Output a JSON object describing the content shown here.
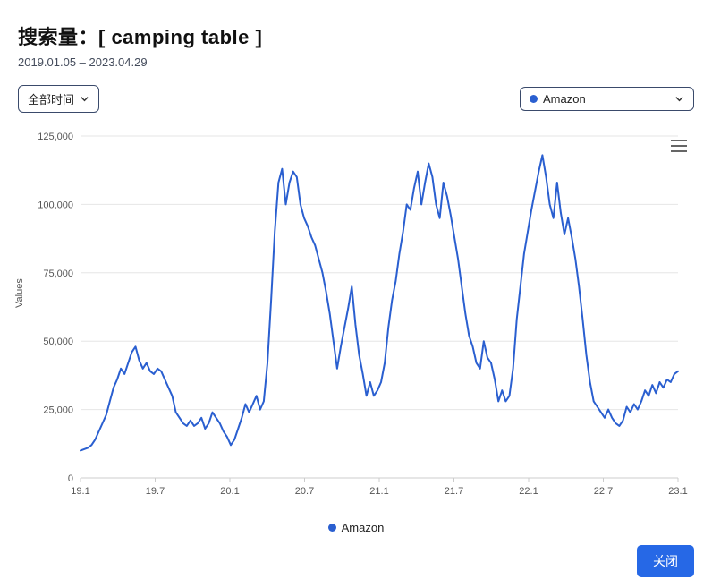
{
  "header": {
    "title": "搜索量：[ camping table ]",
    "date_range": "2019.01.05 – 2023.04.29"
  },
  "controls": {
    "time_filter_label": "全部时间",
    "series_selector_label": "Amazon"
  },
  "chart": {
    "type": "line",
    "ylabel": "Values",
    "line_color": "#2a5fd0",
    "line_width": 2,
    "background_color": "#ffffff",
    "grid_color": "#e6e6e6",
    "axis_color": "#cccccc",
    "tick_fontsize": 11,
    "label_fontsize": 11,
    "ylim": [
      0,
      125000
    ],
    "ytick_step": 25000,
    "yticks": [
      {
        "v": 0,
        "label": "0"
      },
      {
        "v": 25000,
        "label": "25,000"
      },
      {
        "v": 50000,
        "label": "50,000"
      },
      {
        "v": 75000,
        "label": "75,000"
      },
      {
        "v": 100000,
        "label": "100,000"
      },
      {
        "v": 125000,
        "label": "125,000"
      }
    ],
    "x_categories": [
      "19.1",
      "19.7",
      "20.1",
      "20.7",
      "21.1",
      "21.7",
      "22.1",
      "22.7",
      "23.1"
    ],
    "series": [
      {
        "name": "Amazon",
        "color": "#2a5fd0",
        "values": [
          10000,
          10500,
          11000,
          12000,
          14000,
          17000,
          20000,
          23000,
          28000,
          33000,
          36000,
          40000,
          38000,
          42000,
          46000,
          48000,
          43000,
          40000,
          42000,
          39000,
          38000,
          40000,
          39000,
          36000,
          33000,
          30000,
          24000,
          22000,
          20000,
          19000,
          21000,
          19000,
          20000,
          22000,
          18000,
          20000,
          24000,
          22000,
          20000,
          17000,
          15000,
          12000,
          14000,
          18000,
          22000,
          27000,
          24000,
          27000,
          30000,
          25000,
          28000,
          42000,
          65000,
          90000,
          108000,
          113000,
          100000,
          108000,
          112000,
          110000,
          100000,
          95000,
          92000,
          88000,
          85000,
          80000,
          75000,
          68000,
          60000,
          50000,
          40000,
          48000,
          55000,
          62000,
          70000,
          56000,
          45000,
          38000,
          30000,
          35000,
          30000,
          32000,
          35000,
          42000,
          55000,
          65000,
          72000,
          82000,
          90000,
          100000,
          98000,
          106000,
          112000,
          100000,
          108000,
          115000,
          110000,
          100000,
          95000,
          108000,
          103000,
          96000,
          88000,
          80000,
          70000,
          60000,
          52000,
          48000,
          42000,
          40000,
          50000,
          44000,
          42000,
          36000,
          28000,
          32000,
          28000,
          30000,
          40000,
          58000,
          70000,
          82000,
          90000,
          98000,
          105000,
          112000,
          118000,
          110000,
          100000,
          95000,
          108000,
          97000,
          89000,
          95000,
          88000,
          80000,
          70000,
          58000,
          45000,
          35000,
          28000,
          26000,
          24000,
          22000,
          25000,
          22000,
          20000,
          19000,
          21000,
          26000,
          24000,
          27000,
          25000,
          28000,
          32000,
          30000,
          34000,
          31000,
          35000,
          33000,
          36000,
          35000,
          38000,
          39000
        ]
      }
    ],
    "legend_label": "Amazon",
    "legend_dot_color": "#2a5fd0"
  },
  "footer": {
    "close_button": "关闭"
  },
  "colors": {
    "header_text": "#111111",
    "subtext": "#444c5c",
    "dropdown_border": "#3a4a6b",
    "button_bg": "#2668e6",
    "button_text": "#ffffff"
  }
}
